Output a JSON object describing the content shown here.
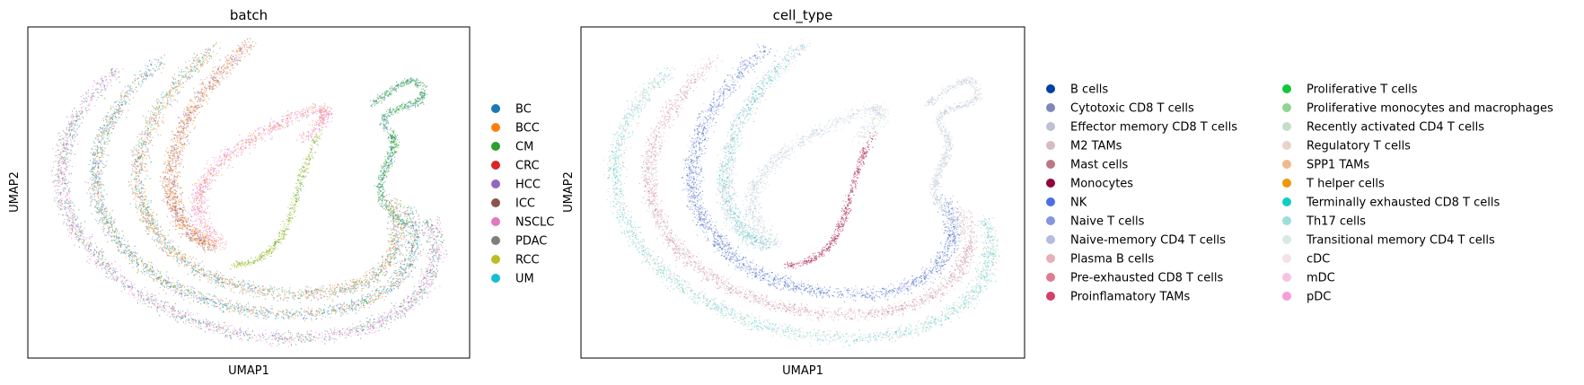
{
  "chart_data": [
    {
      "type": "scatter",
      "title": "batch",
      "xlabel": "UMAP1",
      "ylabel": "UMAP2",
      "grid": false,
      "legend_placement": "right",
      "series": [
        {
          "name": "BC",
          "color": "#1f77b4"
        },
        {
          "name": "BCC",
          "color": "#ff7f0e"
        },
        {
          "name": "CM",
          "color": "#2ca02c"
        },
        {
          "name": "CRC",
          "color": "#d62728"
        },
        {
          "name": "HCC",
          "color": "#9467bd"
        },
        {
          "name": "ICC",
          "color": "#8c564b"
        },
        {
          "name": "NSCLC",
          "color": "#e377c2"
        },
        {
          "name": "PDAC",
          "color": "#7f7f7f"
        },
        {
          "name": "RCC",
          "color": "#bcbd22"
        },
        {
          "name": "UM",
          "color": "#17becf"
        }
      ]
    },
    {
      "type": "scatter",
      "title": "cell_type",
      "xlabel": "UMAP1",
      "ylabel": "UMAP2",
      "grid": false,
      "legend_placement": "right",
      "series": [
        {
          "name": "B cells",
          "color": "#023fa5"
        },
        {
          "name": "Cytotoxic CD8 T cells",
          "color": "#7d87b9"
        },
        {
          "name": "Effector memory CD8 T cells",
          "color": "#bec1d4"
        },
        {
          "name": "M2 TAMs",
          "color": "#d6bcc0"
        },
        {
          "name": "Mast cells",
          "color": "#bb7784"
        },
        {
          "name": "Monocytes",
          "color": "#8e063b"
        },
        {
          "name": "NK",
          "color": "#4a6fe3"
        },
        {
          "name": "Naive T cells",
          "color": "#8595e1"
        },
        {
          "name": "Naive-memory CD4 T cells",
          "color": "#b5bbe3"
        },
        {
          "name": "Plasma B cells",
          "color": "#e6afb9"
        },
        {
          "name": "Pre-exhausted CD8 T cells",
          "color": "#e07b91"
        },
        {
          "name": "Proinflamatory TAMs",
          "color": "#d33f6a"
        },
        {
          "name": "Proliferative T cells",
          "color": "#11c638"
        },
        {
          "name": "Proliferative monocytes and macrophages",
          "color": "#8dd593"
        },
        {
          "name": "Recently activated CD4 T cells",
          "color": "#c6dec7"
        },
        {
          "name": "Regulatory T cells",
          "color": "#ead3c6"
        },
        {
          "name": "SPP1 TAMs",
          "color": "#f0b98d"
        },
        {
          "name": "T helper cells",
          "color": "#ef9708"
        },
        {
          "name": "Terminally exhausted CD8 T cells",
          "color": "#0fcfc0"
        },
        {
          "name": "Th17 cells",
          "color": "#9cded6"
        },
        {
          "name": "Transitional memory CD4 T cells",
          "color": "#d5eae7"
        },
        {
          "name": "cDC",
          "color": "#f3e1eb"
        },
        {
          "name": "mDC",
          "color": "#f6c4e1"
        },
        {
          "name": "pDC",
          "color": "#f79cd4"
        }
      ]
    }
  ]
}
